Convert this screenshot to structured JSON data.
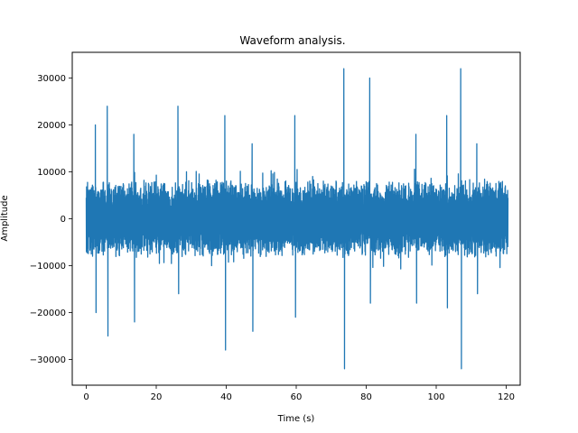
{
  "chart_data": {
    "type": "line",
    "title": "Waveform analysis.",
    "xlabel": "Time (s)",
    "ylabel": "Amplitude",
    "xlim": [
      -4,
      124
    ],
    "ylim": [
      -35500,
      35500
    ],
    "x_ticks": [
      0,
      20,
      40,
      60,
      80,
      100,
      120
    ],
    "x_tick_labels": [
      "0",
      "20",
      "40",
      "60",
      "80",
      "100",
      "120"
    ],
    "y_ticks": [
      -30000,
      -20000,
      -10000,
      0,
      10000,
      20000,
      30000
    ],
    "y_tick_labels": [
      "−30000",
      "−20000",
      "−10000",
      "0",
      "10000",
      "20000",
      "30000"
    ],
    "grid": false,
    "legend": "none",
    "series": [
      {
        "color": "#1f77b4",
        "x_range": [
          0,
          120.5
        ],
        "typical_envelope": [
          -8500,
          8500
        ],
        "peaks": [
          {
            "x": 2.6,
            "y": 20000
          },
          {
            "x": 2.8,
            "y": -20000
          },
          {
            "x": 6.0,
            "y": 24000
          },
          {
            "x": 6.2,
            "y": -25000
          },
          {
            "x": 13.6,
            "y": 18000
          },
          {
            "x": 13.8,
            "y": -22000
          },
          {
            "x": 26.2,
            "y": 24000
          },
          {
            "x": 26.4,
            "y": -16000
          },
          {
            "x": 39.6,
            "y": 22000
          },
          {
            "x": 39.8,
            "y": -28000
          },
          {
            "x": 47.4,
            "y": 16000
          },
          {
            "x": 47.6,
            "y": -24000
          },
          {
            "x": 59.6,
            "y": 22000
          },
          {
            "x": 59.8,
            "y": -21000
          },
          {
            "x": 73.6,
            "y": 32000
          },
          {
            "x": 73.8,
            "y": -32000
          },
          {
            "x": 81.0,
            "y": 30000
          },
          {
            "x": 81.2,
            "y": -18000
          },
          {
            "x": 94.2,
            "y": 18000
          },
          {
            "x": 94.4,
            "y": -18000
          },
          {
            "x": 103.0,
            "y": 22000
          },
          {
            "x": 103.2,
            "y": -19000
          },
          {
            "x": 107.0,
            "y": 32000
          },
          {
            "x": 107.2,
            "y": -32000
          },
          {
            "x": 111.6,
            "y": 16000
          },
          {
            "x": 111.8,
            "y": -16000
          }
        ]
      }
    ]
  }
}
